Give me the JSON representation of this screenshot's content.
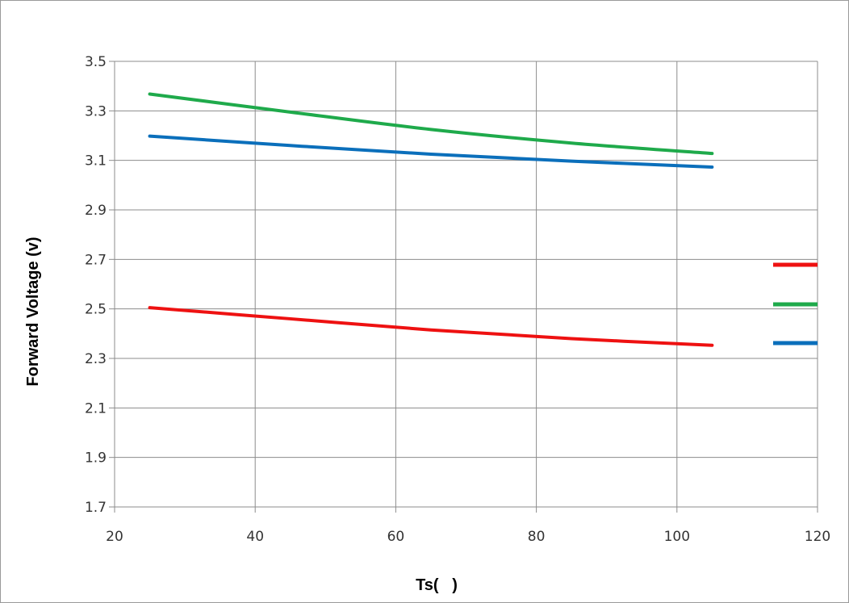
{
  "chart_data": {
    "type": "line",
    "title": "",
    "xlabel": "Ts(   )",
    "ylabel": "Forward Voltage (v)",
    "xlim": [
      20,
      120
    ],
    "ylim": [
      1.7,
      3.5
    ],
    "x_ticks": [
      "20",
      "40",
      "60",
      "80",
      "100",
      "120"
    ],
    "y_ticks": [
      "1.7",
      "1.9",
      "2.1",
      "2.3",
      "2.5",
      "2.7",
      "2.9",
      "3.1",
      "3.3",
      "3.5"
    ],
    "grid": true,
    "legend_placement": "right",
    "x": [
      25,
      45,
      65,
      85,
      105
    ],
    "series": [
      {
        "color": "#ee1111",
        "values": [
          2.505,
          2.46,
          2.415,
          2.38,
          2.353
        ]
      },
      {
        "color": "#1faa4b",
        "values": [
          3.368,
          3.295,
          3.225,
          3.17,
          3.128
        ]
      },
      {
        "color": "#0b6fbb",
        "values": [
          3.198,
          3.16,
          3.125,
          3.097,
          3.073
        ]
      }
    ]
  }
}
